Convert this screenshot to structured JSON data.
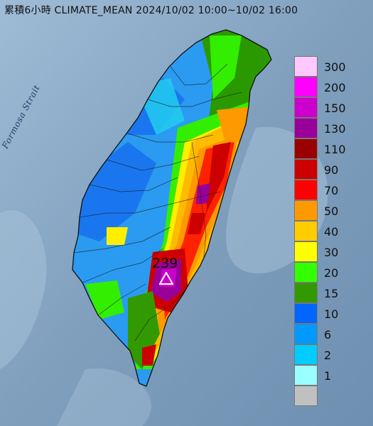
{
  "title": "累積6小時 CLIMATE_MEAN 2024/10/02 10:00~10/02 16:00",
  "water_label": "Formosa Strait",
  "peak": {
    "value": "239",
    "marker_icon": "triangle-icon"
  },
  "legend": [
    {
      "label": "300",
      "color": "#ffc8ff"
    },
    {
      "label": "200",
      "color": "#ff00ff"
    },
    {
      "label": "150",
      "color": "#cc00cc"
    },
    {
      "label": "130",
      "color": "#990099"
    },
    {
      "label": "110",
      "color": "#990000"
    },
    {
      "label": "90",
      "color": "#cc0000"
    },
    {
      "label": "70",
      "color": "#ff0000"
    },
    {
      "label": "50",
      "color": "#ff9900"
    },
    {
      "label": "40",
      "color": "#ffcc00"
    },
    {
      "label": "30",
      "color": "#ffff00"
    },
    {
      "label": "20",
      "color": "#33ff00"
    },
    {
      "label": "15",
      "color": "#339900"
    },
    {
      "label": "10",
      "color": "#0066ff"
    },
    {
      "label": "6",
      "color": "#0099ff"
    },
    {
      "label": "2",
      "color": "#00ccff"
    },
    {
      "label": "1",
      "color": "#99ffff"
    },
    {
      "label": "",
      "color": "#c0c0c0"
    }
  ]
}
